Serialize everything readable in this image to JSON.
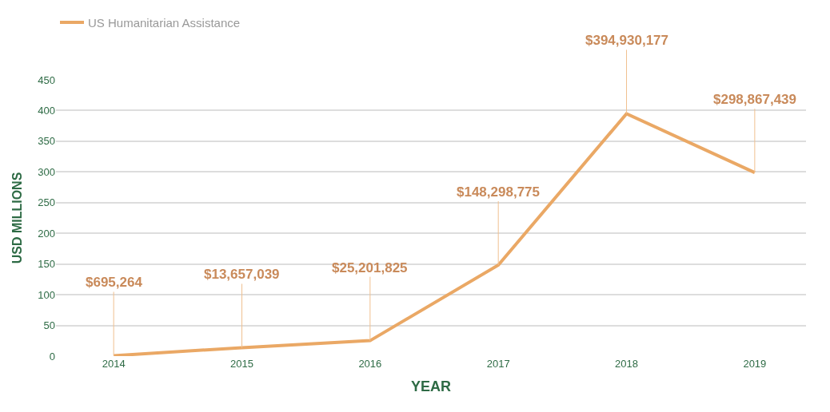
{
  "chart_data": {
    "type": "line",
    "xlabel": "YEAR",
    "ylabel": "USD MILLIONS",
    "categories": [
      "2014",
      "2015",
      "2016",
      "2017",
      "2018",
      "2019"
    ],
    "series": [
      {
        "name": "US Humanitarian Assistance",
        "color": "#eaa865",
        "values": [
          0.7,
          13.7,
          25.2,
          148.3,
          394.9,
          298.9
        ]
      }
    ],
    "annotations": [
      {
        "text": "$695,264",
        "x": "2014",
        "y": 0.7
      },
      {
        "text": "$13,657,039",
        "x": "2015",
        "y": 13.7
      },
      {
        "text": "$25,201,825",
        "x": "2016",
        "y": 25.2
      },
      {
        "text": "$148,298,775",
        "x": "2017",
        "y": 148.3
      },
      {
        "text": "$394,930,177",
        "x": "2018",
        "y": 394.9
      },
      {
        "text": "$298,867,439",
        "x": "2019",
        "y": 298.9
      }
    ],
    "ylim": [
      0,
      450
    ],
    "yticks": [
      0,
      50,
      100,
      150,
      200,
      250,
      300,
      350,
      400,
      450
    ],
    "grid": "y",
    "legend": "top left",
    "marker": "none",
    "line_style": "solid"
  }
}
